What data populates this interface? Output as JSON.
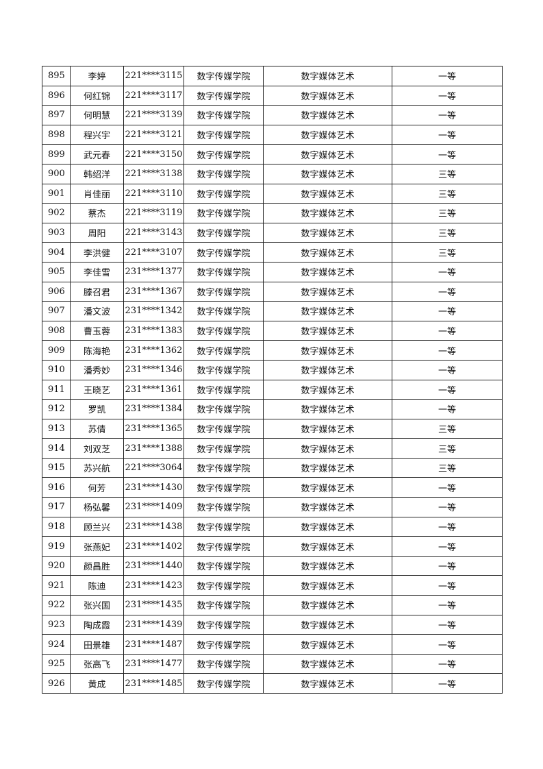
{
  "table": {
    "rows": [
      [
        "895",
        "李婷",
        "221****3115",
        "数字传媒学院",
        "数字媒体艺术",
        "一等"
      ],
      [
        "896",
        "何红锦",
        "221****3117",
        "数字传媒学院",
        "数字媒体艺术",
        "一等"
      ],
      [
        "897",
        "何明慧",
        "221****3139",
        "数字传媒学院",
        "数字媒体艺术",
        "一等"
      ],
      [
        "898",
        "程兴宇",
        "221****3121",
        "数字传媒学院",
        "数字媒体艺术",
        "一等"
      ],
      [
        "899",
        "武元春",
        "221****3150",
        "数字传媒学院",
        "数字媒体艺术",
        "一等"
      ],
      [
        "900",
        "韩绍洋",
        "221****3138",
        "数字传媒学院",
        "数字媒体艺术",
        "三等"
      ],
      [
        "901",
        "肖佳丽",
        "221****3110",
        "数字传媒学院",
        "数字媒体艺术",
        "三等"
      ],
      [
        "902",
        "蔡杰",
        "221****3119",
        "数字传媒学院",
        "数字媒体艺术",
        "三等"
      ],
      [
        "903",
        "周阳",
        "221****3143",
        "数字传媒学院",
        "数字媒体艺术",
        "三等"
      ],
      [
        "904",
        "李洪健",
        "221****3107",
        "数字传媒学院",
        "数字媒体艺术",
        "三等"
      ],
      [
        "905",
        "李佳雪",
        "231****1377",
        "数字传媒学院",
        "数字媒体艺术",
        "一等"
      ],
      [
        "906",
        "滕召君",
        "231****1367",
        "数字传媒学院",
        "数字媒体艺术",
        "一等"
      ],
      [
        "907",
        "潘文波",
        "231****1342",
        "数字传媒学院",
        "数字媒体艺术",
        "一等"
      ],
      [
        "908",
        "曹玉蓉",
        "231****1383",
        "数字传媒学院",
        "数字媒体艺术",
        "一等"
      ],
      [
        "909",
        "陈海艳",
        "231****1362",
        "数字传媒学院",
        "数字媒体艺术",
        "一等"
      ],
      [
        "910",
        "潘秀妙",
        "231****1346",
        "数字传媒学院",
        "数字媒体艺术",
        "一等"
      ],
      [
        "911",
        "王晓艺",
        "231****1361",
        "数字传媒学院",
        "数字媒体艺术",
        "一等"
      ],
      [
        "912",
        "罗凯",
        "231****1384",
        "数字传媒学院",
        "数字媒体艺术",
        "一等"
      ],
      [
        "913",
        "苏倩",
        "231****1365",
        "数字传媒学院",
        "数字媒体艺术",
        "三等"
      ],
      [
        "914",
        "刘双芝",
        "231****1388",
        "数字传媒学院",
        "数字媒体艺术",
        "三等"
      ],
      [
        "915",
        "苏兴航",
        "221****3064",
        "数字传媒学院",
        "数字媒体艺术",
        "三等"
      ],
      [
        "916",
        "何芳",
        "231****1430",
        "数字传媒学院",
        "数字媒体艺术",
        "一等"
      ],
      [
        "917",
        "杨弘馨",
        "231****1409",
        "数字传媒学院",
        "数字媒体艺术",
        "一等"
      ],
      [
        "918",
        "顾兰兴",
        "231****1438",
        "数字传媒学院",
        "数字媒体艺术",
        "一等"
      ],
      [
        "919",
        "张燕妃",
        "231****1402",
        "数字传媒学院",
        "数字媒体艺术",
        "一等"
      ],
      [
        "920",
        "颜昌胜",
        "231****1440",
        "数字传媒学院",
        "数字媒体艺术",
        "一等"
      ],
      [
        "921",
        "陈迪",
        "231****1423",
        "数字传媒学院",
        "数字媒体艺术",
        "一等"
      ],
      [
        "922",
        "张兴国",
        "231****1435",
        "数字传媒学院",
        "数字媒体艺术",
        "一等"
      ],
      [
        "923",
        "陶成霞",
        "231****1439",
        "数字传媒学院",
        "数字媒体艺术",
        "一等"
      ],
      [
        "924",
        "田景雄",
        "231****1487",
        "数字传媒学院",
        "数字媒体艺术",
        "一等"
      ],
      [
        "925",
        "张高飞",
        "231****1477",
        "数字传媒学院",
        "数字媒体艺术",
        "一等"
      ],
      [
        "926",
        "黄成",
        "231****1485",
        "数字传媒学院",
        "数字媒体艺术",
        "一等"
      ]
    ]
  }
}
